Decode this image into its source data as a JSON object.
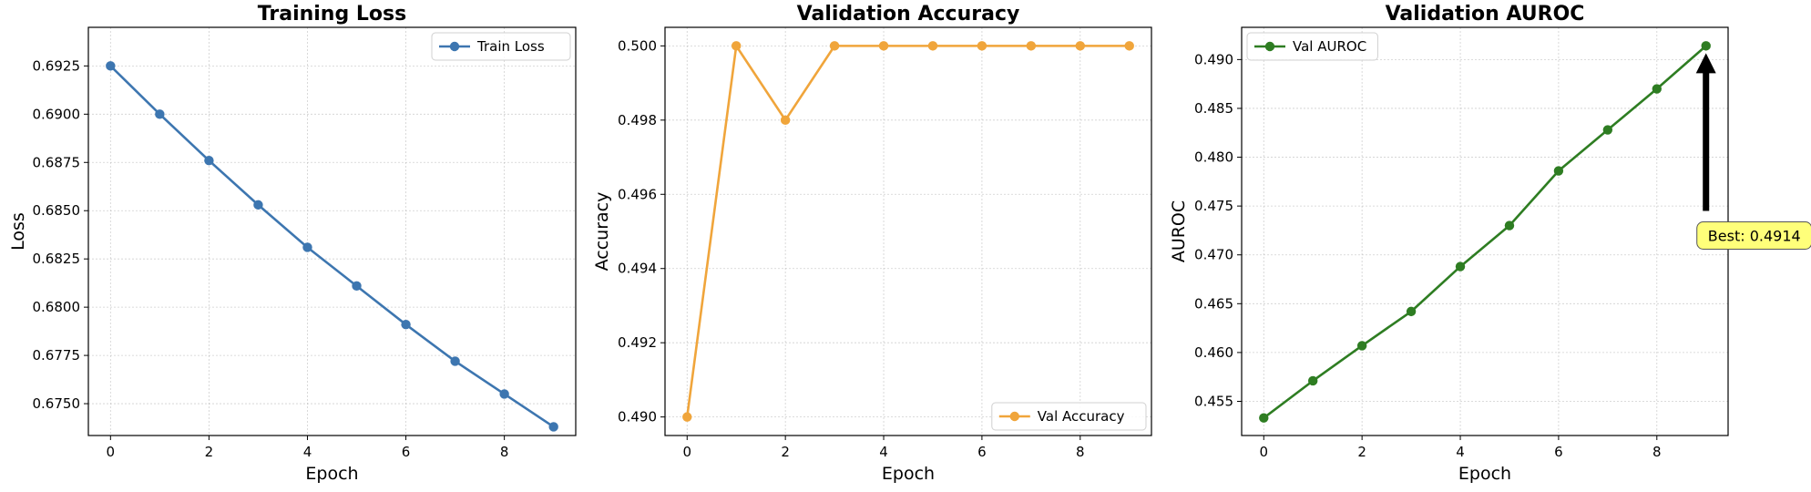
{
  "chart_data": [
    {
      "type": "line",
      "title": "Training Loss",
      "xlabel": "Epoch",
      "ylabel": "Loss",
      "x": [
        0,
        1,
        2,
        3,
        4,
        5,
        6,
        7,
        8,
        9
      ],
      "xlim": [
        -0.45,
        9.45
      ],
      "ylim": [
        0.67335,
        0.6945
      ],
      "xticks": [
        0,
        2,
        4,
        6,
        8
      ],
      "yticks": [
        0.675,
        0.6775,
        0.68,
        0.6825,
        0.685,
        0.6875,
        0.69,
        0.6925
      ],
      "ytick_decimals": 4,
      "grid": true,
      "legend_position": "top-right",
      "series": [
        {
          "name": "Train Loss",
          "color": "#3d76b0",
          "values": [
            0.6925,
            0.69,
            0.6876,
            0.6853,
            0.6831,
            0.6811,
            0.6791,
            0.6772,
            0.6755,
            0.6738
          ]
        }
      ]
    },
    {
      "type": "line",
      "title": "Validation Accuracy",
      "xlabel": "Epoch",
      "ylabel": "Accuracy",
      "x": [
        0,
        1,
        2,
        3,
        4,
        5,
        6,
        7,
        8,
        9
      ],
      "xlim": [
        -0.45,
        9.45
      ],
      "ylim": [
        0.4895,
        0.5005
      ],
      "xticks": [
        0,
        2,
        4,
        6,
        8
      ],
      "yticks": [
        0.49,
        0.492,
        0.494,
        0.496,
        0.498,
        0.5
      ],
      "ytick_decimals": 3,
      "grid": true,
      "legend_position": "bottom-right",
      "series": [
        {
          "name": "Val Accuracy",
          "color": "#f0a53b",
          "values": [
            0.49,
            0.5,
            0.498,
            0.5,
            0.5,
            0.5,
            0.5,
            0.5,
            0.5,
            0.5
          ]
        }
      ]
    },
    {
      "type": "line",
      "title": "Validation AUROC",
      "xlabel": "Epoch",
      "ylabel": "AUROC",
      "x": [
        0,
        1,
        2,
        3,
        4,
        5,
        6,
        7,
        8,
        9
      ],
      "xlim": [
        -0.45,
        9.45
      ],
      "ylim": [
        0.4515,
        0.4933
      ],
      "xticks": [
        0,
        2,
        4,
        6,
        8
      ],
      "yticks": [
        0.455,
        0.46,
        0.465,
        0.47,
        0.475,
        0.48,
        0.485,
        0.49
      ],
      "ytick_decimals": 3,
      "grid": true,
      "legend_position": "top-left",
      "series": [
        {
          "name": "Val AUROC",
          "color": "#2e7d22",
          "values": [
            0.4533,
            0.4571,
            0.4607,
            0.4642,
            0.4688,
            0.473,
            0.4786,
            0.4828,
            0.487,
            0.4914
          ]
        }
      ],
      "annotation": {
        "text": "Best: 0.4914",
        "x": 9,
        "y": 0.4914,
        "arrow_from_y": 0.4745,
        "box_color": "#ffff7a"
      }
    }
  ]
}
